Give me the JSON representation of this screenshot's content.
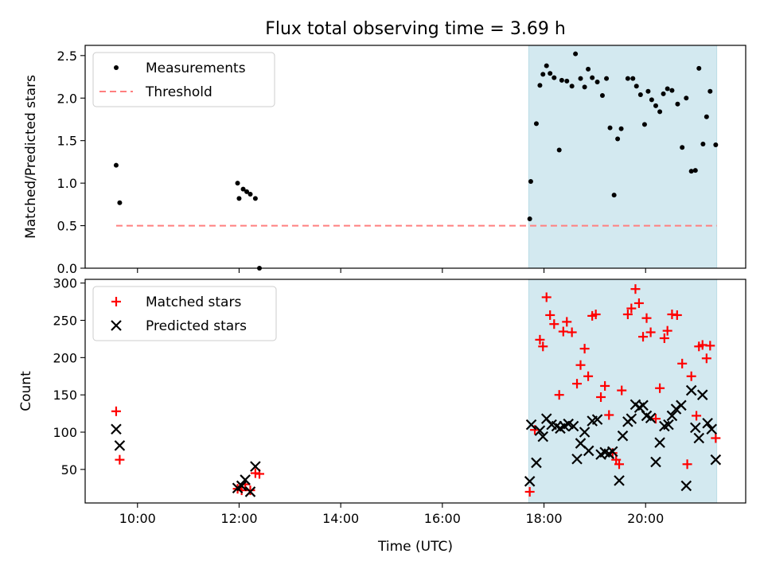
{
  "chart_data": {
    "title": "Flux total observing time = 3.69 h",
    "xlabel": "Time (UTC)",
    "x_ticks": [
      {
        "value": 10.0,
        "label": "10:00"
      },
      {
        "value": 12.0,
        "label": "12:00"
      },
      {
        "value": 14.0,
        "label": "14:00"
      },
      {
        "value": 16.0,
        "label": "16:00"
      },
      {
        "value": 18.0,
        "label": "18:00"
      },
      {
        "value": 20.0,
        "label": "20:00"
      }
    ],
    "xlim": [
      8.97,
      21.97
    ],
    "highlight_span": {
      "x": [
        17.7,
        21.4
      ],
      "color": "#d3e9f0"
    },
    "panels": [
      {
        "type": "scatter",
        "ylabel": "Matched/Predicted stars",
        "ylim": [
          0,
          2.62
        ],
        "y_ticks": [
          {
            "value": 0.0,
            "label": "0.0"
          },
          {
            "value": 0.5,
            "label": "0.5"
          },
          {
            "value": 1.0,
            "label": "1.0"
          },
          {
            "value": 1.5,
            "label": "1.5"
          },
          {
            "value": 2.0,
            "label": "2.0"
          },
          {
            "value": 2.5,
            "label": "2.5"
          }
        ],
        "legend": {
          "position": "top-left",
          "entries": [
            {
              "label": "Measurements",
              "marker": "dot",
              "color": "#000000"
            },
            {
              "label": "Threshold",
              "marker": "dashed-line",
              "color": "#ff7f7f"
            }
          ]
        },
        "threshold": {
          "value": 0.5,
          "x": [
            9.58,
            21.4
          ],
          "color": "#ff7f7f"
        },
        "series": [
          {
            "name": "Measurements",
            "color": "#000000",
            "points": [
              [
                9.58,
                1.21
              ],
              [
                9.65,
                0.77
              ],
              [
                11.97,
                1.0
              ],
              [
                12.0,
                0.82
              ],
              [
                12.08,
                0.93
              ],
              [
                12.15,
                0.9
              ],
              [
                12.22,
                0.87
              ],
              [
                12.32,
                0.82
              ],
              [
                12.4,
                0.0
              ],
              [
                17.72,
                0.58
              ],
              [
                17.74,
                1.02
              ],
              [
                17.85,
                1.7
              ],
              [
                17.92,
                2.15
              ],
              [
                17.98,
                2.28
              ],
              [
                18.05,
                2.38
              ],
              [
                18.12,
                2.29
              ],
              [
                18.2,
                2.24
              ],
              [
                18.3,
                1.39
              ],
              [
                18.35,
                2.21
              ],
              [
                18.45,
                2.2
              ],
              [
                18.55,
                2.14
              ],
              [
                18.62,
                2.52
              ],
              [
                18.72,
                2.23
              ],
              [
                18.8,
                2.13
              ],
              [
                18.87,
                2.34
              ],
              [
                18.95,
                2.24
              ],
              [
                19.05,
                2.19
              ],
              [
                19.15,
                2.03
              ],
              [
                19.23,
                2.23
              ],
              [
                19.3,
                1.65
              ],
              [
                19.38,
                0.86
              ],
              [
                19.45,
                1.52
              ],
              [
                19.52,
                1.64
              ],
              [
                19.65,
                2.23
              ],
              [
                19.75,
                2.23
              ],
              [
                19.82,
                2.14
              ],
              [
                19.9,
                2.04
              ],
              [
                19.98,
                1.69
              ],
              [
                20.05,
                2.08
              ],
              [
                20.12,
                1.98
              ],
              [
                20.2,
                1.91
              ],
              [
                20.28,
                1.84
              ],
              [
                20.35,
                2.05
              ],
              [
                20.43,
                2.11
              ],
              [
                20.52,
                2.09
              ],
              [
                20.63,
                1.93
              ],
              [
                20.72,
                1.42
              ],
              [
                20.8,
                2.0
              ],
              [
                20.9,
                1.14
              ],
              [
                20.98,
                1.15
              ],
              [
                21.05,
                2.35
              ],
              [
                21.13,
                1.46
              ],
              [
                21.2,
                1.78
              ],
              [
                21.27,
                2.08
              ],
              [
                21.38,
                1.45
              ]
            ]
          }
        ]
      },
      {
        "type": "scatter",
        "ylabel": "Count",
        "ylim": [
          5,
          305
        ],
        "y_ticks": [
          {
            "value": 50,
            "label": "50"
          },
          {
            "value": 100,
            "label": "100"
          },
          {
            "value": 150,
            "label": "150"
          },
          {
            "value": 200,
            "label": "200"
          },
          {
            "value": 250,
            "label": "250"
          },
          {
            "value": 300,
            "label": "300"
          }
        ],
        "legend": {
          "position": "top-left",
          "entries": [
            {
              "label": "Matched stars",
              "marker": "plus",
              "color": "#ff0000"
            },
            {
              "label": "Predicted stars",
              "marker": "x",
              "color": "#000000"
            }
          ]
        },
        "series": [
          {
            "name": "Matched stars",
            "marker": "plus",
            "color": "#ff0000",
            "points": [
              [
                9.58,
                128
              ],
              [
                9.65,
                63
              ],
              [
                11.97,
                24
              ],
              [
                12.05,
                22
              ],
              [
                12.12,
                30
              ],
              [
                12.22,
                22
              ],
              [
                12.32,
                45
              ],
              [
                12.4,
                44
              ],
              [
                17.72,
                20
              ],
              [
                17.82,
                103
              ],
              [
                17.92,
                224
              ],
              [
                17.98,
                215
              ],
              [
                18.05,
                281
              ],
              [
                18.12,
                257
              ],
              [
                18.2,
                245
              ],
              [
                18.3,
                150
              ],
              [
                18.38,
                235
              ],
              [
                18.45,
                248
              ],
              [
                18.55,
                234
              ],
              [
                18.65,
                165
              ],
              [
                18.72,
                190
              ],
              [
                18.8,
                212
              ],
              [
                18.87,
                175
              ],
              [
                18.95,
                256
              ],
              [
                19.02,
                258
              ],
              [
                19.12,
                147
              ],
              [
                19.2,
                162
              ],
              [
                19.28,
                123
              ],
              [
                19.35,
                72
              ],
              [
                19.42,
                63
              ],
              [
                19.48,
                57
              ],
              [
                19.53,
                156
              ],
              [
                19.65,
                258
              ],
              [
                19.72,
                266
              ],
              [
                19.8,
                292
              ],
              [
                19.87,
                273
              ],
              [
                19.95,
                228
              ],
              [
                20.02,
                253
              ],
              [
                20.1,
                234
              ],
              [
                20.2,
                118
              ],
              [
                20.28,
                159
              ],
              [
                20.37,
                226
              ],
              [
                20.43,
                236
              ],
              [
                20.52,
                258
              ],
              [
                20.62,
                257
              ],
              [
                20.72,
                192
              ],
              [
                20.82,
                57
              ],
              [
                20.9,
                175
              ],
              [
                21.0,
                122
              ],
              [
                21.05,
                215
              ],
              [
                21.12,
                217
              ],
              [
                21.2,
                199
              ],
              [
                21.27,
                216
              ],
              [
                21.38,
                92
              ]
            ]
          },
          {
            "name": "Predicted stars",
            "marker": "x",
            "color": "#000000",
            "points": [
              [
                9.58,
                104
              ],
              [
                9.65,
                82
              ],
              [
                11.97,
                25
              ],
              [
                12.05,
                28
              ],
              [
                12.12,
                36
              ],
              [
                12.22,
                20
              ],
              [
                12.32,
                54
              ],
              [
                17.72,
                34
              ],
              [
                17.75,
                110
              ],
              [
                17.85,
                59
              ],
              [
                17.92,
                102
              ],
              [
                17.98,
                94
              ],
              [
                18.05,
                118
              ],
              [
                18.15,
                110
              ],
              [
                18.25,
                108
              ],
              [
                18.32,
                105
              ],
              [
                18.4,
                108
              ],
              [
                18.48,
                111
              ],
              [
                18.58,
                108
              ],
              [
                18.65,
                64
              ],
              [
                18.72,
                85
              ],
              [
                18.8,
                100
              ],
              [
                18.88,
                75
              ],
              [
                18.95,
                115
              ],
              [
                19.05,
                117
              ],
              [
                19.12,
                70
              ],
              [
                19.2,
                73
              ],
              [
                19.28,
                71
              ],
              [
                19.35,
                74
              ],
              [
                19.48,
                35
              ],
              [
                19.55,
                95
              ],
              [
                19.65,
                114
              ],
              [
                19.72,
                118
              ],
              [
                19.8,
                137
              ],
              [
                19.88,
                133
              ],
              [
                19.95,
                136
              ],
              [
                20.02,
                122
              ],
              [
                20.1,
                119
              ],
              [
                20.2,
                60
              ],
              [
                20.28,
                86
              ],
              [
                20.37,
                108
              ],
              [
                20.45,
                110
              ],
              [
                20.52,
                122
              ],
              [
                20.6,
                131
              ],
              [
                20.7,
                136
              ],
              [
                20.8,
                28
              ],
              [
                20.9,
                156
              ],
              [
                20.98,
                106
              ],
              [
                21.05,
                92
              ],
              [
                21.12,
                150
              ],
              [
                21.22,
                112
              ],
              [
                21.3,
                104
              ],
              [
                21.38,
                63
              ]
            ]
          }
        ]
      }
    ]
  }
}
